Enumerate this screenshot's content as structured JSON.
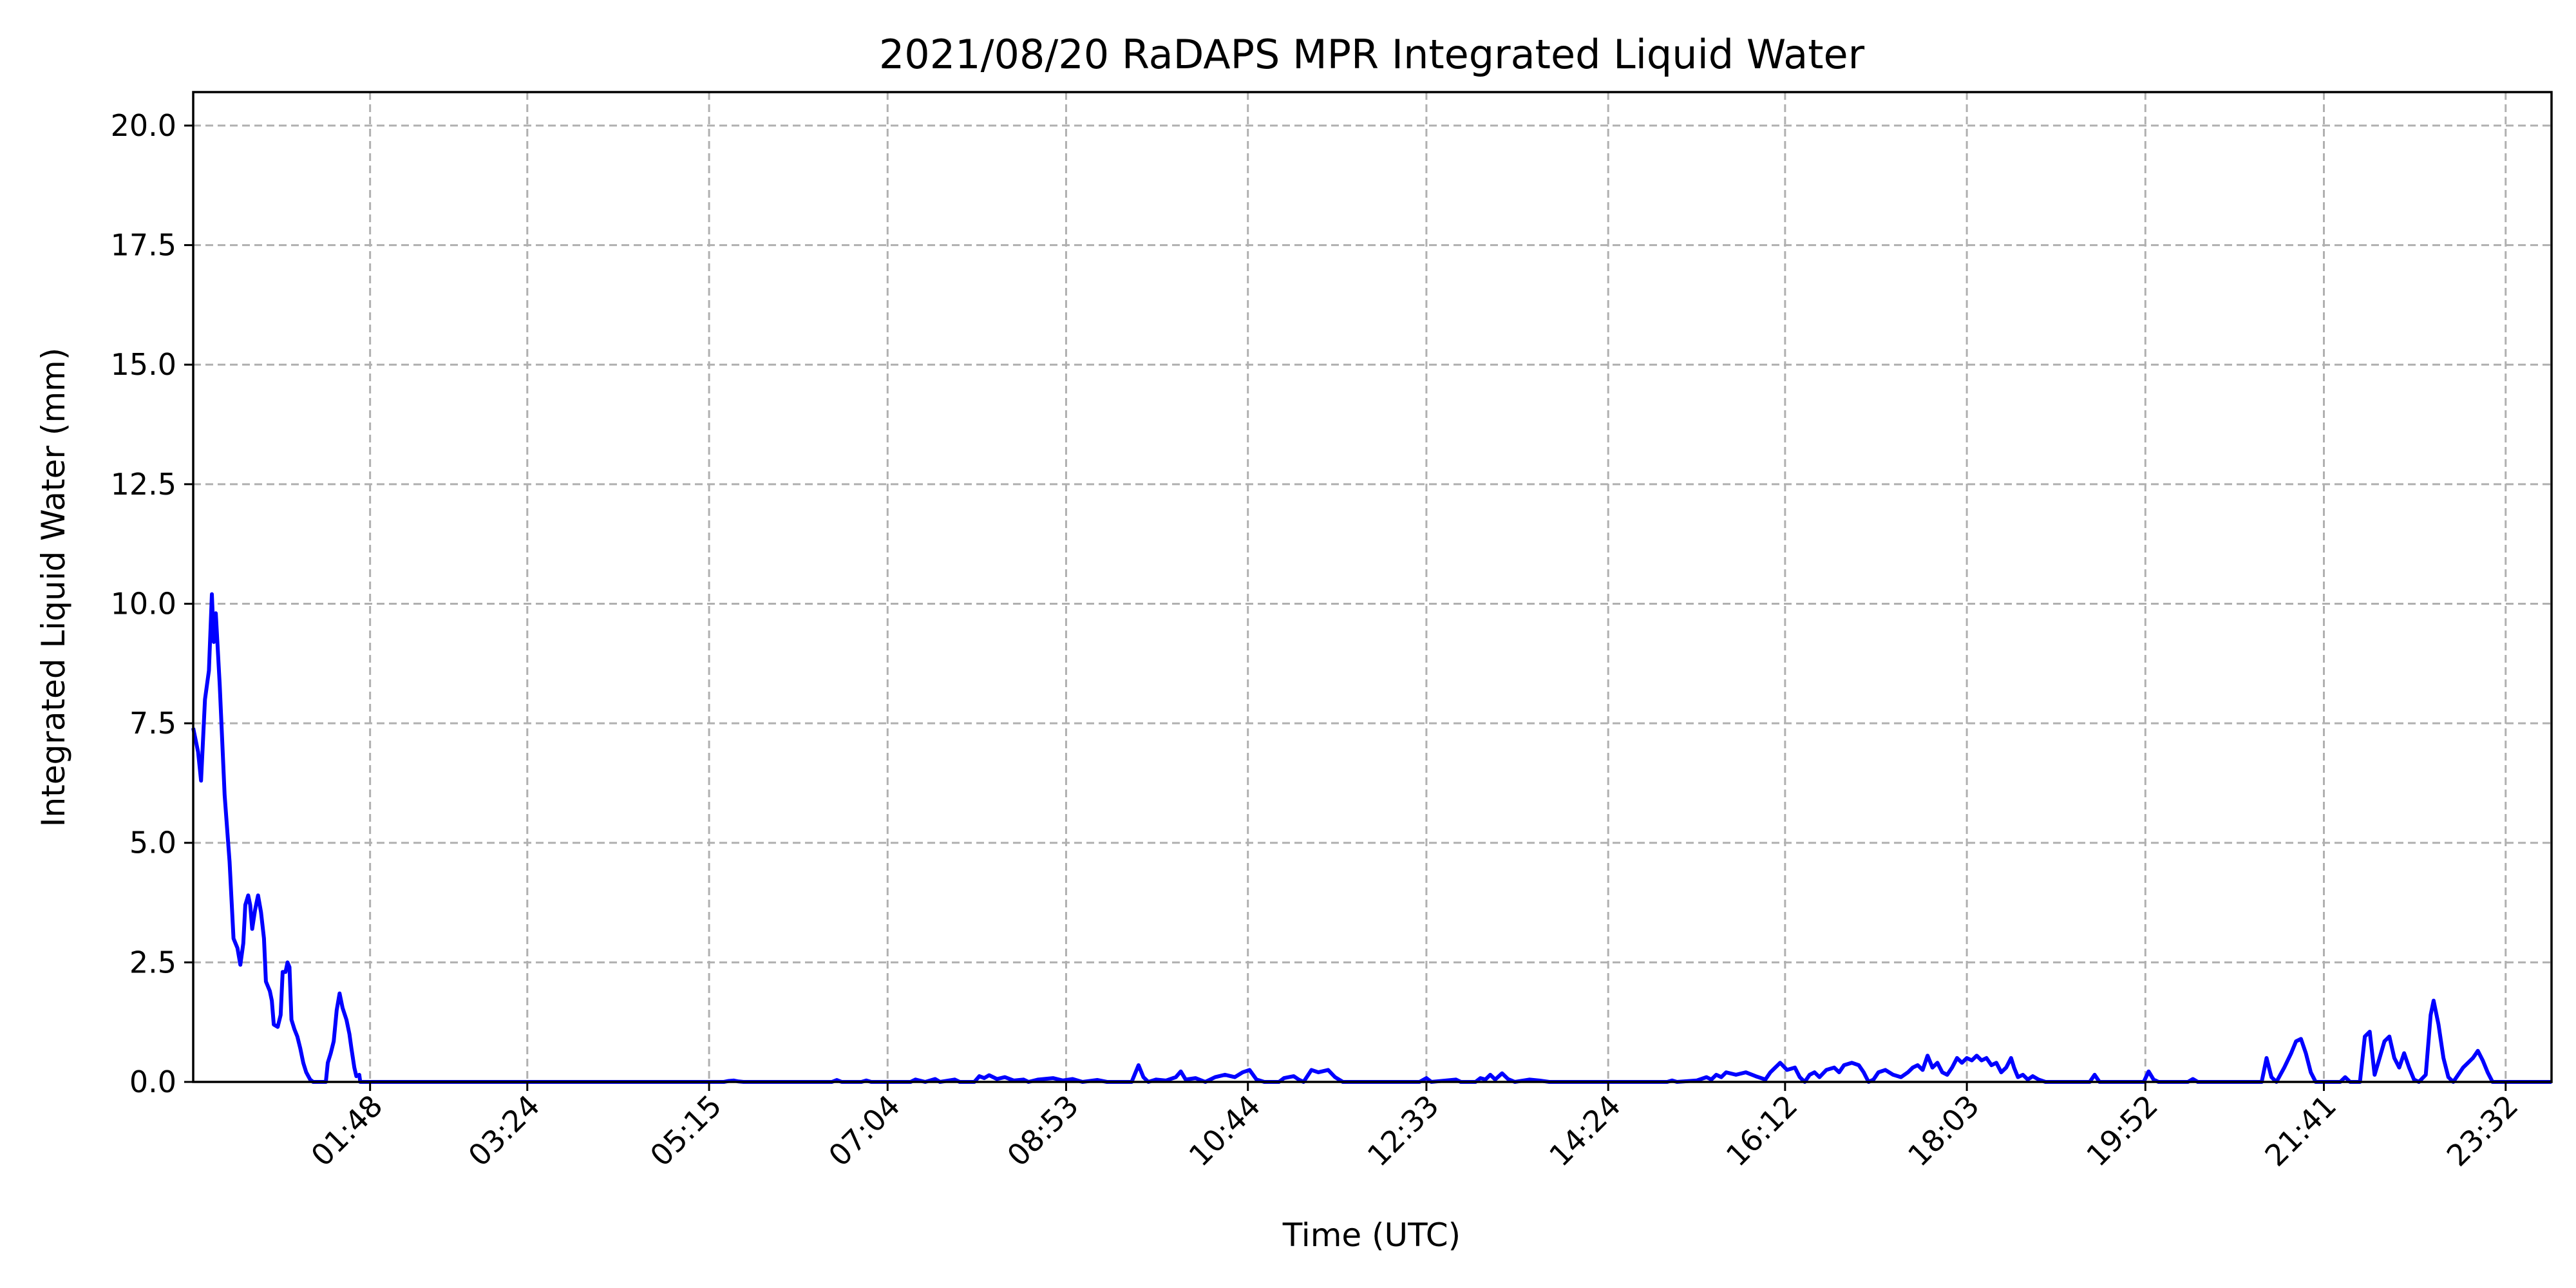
{
  "chart_data": {
    "type": "line",
    "title": "2021/08/20 RaDAPS MPR Integrated Liquid Water",
    "xlabel": "Time (UTC)",
    "ylabel": "Integrated Liquid Water (mm)",
    "xlim_hours": [
      0.0,
      24.0
    ],
    "ylim": [
      0,
      20.7
    ],
    "grid": true,
    "x_ticks": [
      {
        "h": 1.8,
        "label": "01:48"
      },
      {
        "h": 3.4,
        "label": "03:24"
      },
      {
        "h": 5.25,
        "label": "05:15"
      },
      {
        "h": 7.0667,
        "label": "07:04"
      },
      {
        "h": 8.8833,
        "label": "08:53"
      },
      {
        "h": 10.7333,
        "label": "10:44"
      },
      {
        "h": 12.55,
        "label": "12:33"
      },
      {
        "h": 14.4,
        "label": "14:24"
      },
      {
        "h": 16.2,
        "label": "16:12"
      },
      {
        "h": 18.05,
        "label": "18:03"
      },
      {
        "h": 19.8667,
        "label": "19:52"
      },
      {
        "h": 21.6833,
        "label": "21:41"
      },
      {
        "h": 23.5333,
        "label": "23:32"
      }
    ],
    "y_ticks": [
      {
        "v": 0.0,
        "label": "0.0"
      },
      {
        "v": 2.5,
        "label": "2.5"
      },
      {
        "v": 5.0,
        "label": "5.0"
      },
      {
        "v": 7.5,
        "label": "7.5"
      },
      {
        "v": 10.0,
        "label": "10.0"
      },
      {
        "v": 12.5,
        "label": "12.5"
      },
      {
        "v": 15.0,
        "label": "15.0"
      },
      {
        "v": 17.5,
        "label": "17.5"
      },
      {
        "v": 20.0,
        "label": "20.0"
      }
    ],
    "series": [
      {
        "color": "#0000ff",
        "points": [
          [
            0.0,
            7.4
          ],
          [
            0.05,
            6.9
          ],
          [
            0.08,
            6.3
          ],
          [
            0.12,
            8.0
          ],
          [
            0.16,
            8.6
          ],
          [
            0.19,
            10.2
          ],
          [
            0.21,
            9.2
          ],
          [
            0.23,
            9.8
          ],
          [
            0.27,
            8.3
          ],
          [
            0.32,
            6.0
          ],
          [
            0.37,
            4.6
          ],
          [
            0.41,
            3.0
          ],
          [
            0.45,
            2.8
          ],
          [
            0.48,
            2.45
          ],
          [
            0.51,
            2.9
          ],
          [
            0.53,
            3.7
          ],
          [
            0.56,
            3.9
          ],
          [
            0.58,
            3.7
          ],
          [
            0.6,
            3.2
          ],
          [
            0.63,
            3.6
          ],
          [
            0.66,
            3.9
          ],
          [
            0.69,
            3.55
          ],
          [
            0.72,
            3.0
          ],
          [
            0.74,
            2.1
          ],
          [
            0.78,
            1.9
          ],
          [
            0.8,
            1.7
          ],
          [
            0.82,
            1.2
          ],
          [
            0.86,
            1.15
          ],
          [
            0.89,
            1.4
          ],
          [
            0.91,
            2.3
          ],
          [
            0.94,
            2.3
          ],
          [
            0.96,
            2.5
          ],
          [
            0.98,
            2.4
          ],
          [
            1.0,
            1.3
          ],
          [
            1.03,
            1.1
          ],
          [
            1.06,
            0.95
          ],
          [
            1.09,
            0.7
          ],
          [
            1.12,
            0.4
          ],
          [
            1.15,
            0.2
          ],
          [
            1.19,
            0.05
          ],
          [
            1.22,
            0.0
          ],
          [
            1.35,
            0.0
          ],
          [
            1.37,
            0.4
          ],
          [
            1.4,
            0.6
          ],
          [
            1.43,
            0.85
          ],
          [
            1.46,
            1.5
          ],
          [
            1.49,
            1.85
          ],
          [
            1.52,
            1.55
          ],
          [
            1.56,
            1.3
          ],
          [
            1.59,
            1.0
          ],
          [
            1.61,
            0.7
          ],
          [
            1.64,
            0.3
          ],
          [
            1.66,
            0.12
          ],
          [
            1.69,
            0.15
          ],
          [
            1.7,
            0.0
          ],
          [
            5.4,
            0.0
          ],
          [
            5.45,
            0.02
          ],
          [
            5.5,
            0.03
          ],
          [
            5.55,
            0.01
          ],
          [
            5.6,
            0.0
          ],
          [
            6.5,
            0.0
          ],
          [
            6.55,
            0.04
          ],
          [
            6.6,
            0.0
          ],
          [
            6.8,
            0.0
          ],
          [
            6.85,
            0.03
          ],
          [
            6.9,
            0.0
          ],
          [
            7.3,
            0.0
          ],
          [
            7.35,
            0.05
          ],
          [
            7.45,
            0.0
          ],
          [
            7.55,
            0.06
          ],
          [
            7.6,
            0.0
          ],
          [
            7.75,
            0.05
          ],
          [
            7.8,
            0.0
          ],
          [
            7.95,
            0.0
          ],
          [
            8.0,
            0.12
          ],
          [
            8.05,
            0.08
          ],
          [
            8.1,
            0.14
          ],
          [
            8.18,
            0.06
          ],
          [
            8.26,
            0.1
          ],
          [
            8.35,
            0.03
          ],
          [
            8.45,
            0.05
          ],
          [
            8.5,
            0.0
          ],
          [
            8.6,
            0.05
          ],
          [
            8.75,
            0.08
          ],
          [
            8.85,
            0.03
          ],
          [
            8.95,
            0.06
          ],
          [
            9.05,
            0.0
          ],
          [
            9.2,
            0.04
          ],
          [
            9.3,
            0.0
          ],
          [
            9.55,
            0.0
          ],
          [
            9.62,
            0.35
          ],
          [
            9.67,
            0.1
          ],
          [
            9.72,
            0.0
          ],
          [
            9.8,
            0.05
          ],
          [
            9.9,
            0.03
          ],
          [
            10.0,
            0.1
          ],
          [
            10.05,
            0.22
          ],
          [
            10.1,
            0.05
          ],
          [
            10.2,
            0.08
          ],
          [
            10.3,
            0.0
          ],
          [
            10.4,
            0.1
          ],
          [
            10.5,
            0.15
          ],
          [
            10.6,
            0.1
          ],
          [
            10.68,
            0.2
          ],
          [
            10.75,
            0.25
          ],
          [
            10.82,
            0.05
          ],
          [
            10.9,
            0.0
          ],
          [
            11.05,
            0.0
          ],
          [
            11.1,
            0.08
          ],
          [
            11.2,
            0.12
          ],
          [
            11.25,
            0.05
          ],
          [
            11.3,
            0.0
          ],
          [
            11.38,
            0.25
          ],
          [
            11.45,
            0.2
          ],
          [
            11.55,
            0.25
          ],
          [
            11.62,
            0.1
          ],
          [
            11.7,
            0.0
          ],
          [
            12.48,
            0.0
          ],
          [
            12.55,
            0.08
          ],
          [
            12.6,
            0.0
          ],
          [
            12.85,
            0.05
          ],
          [
            12.9,
            0.0
          ],
          [
            13.05,
            0.0
          ],
          [
            13.1,
            0.08
          ],
          [
            13.15,
            0.05
          ],
          [
            13.2,
            0.15
          ],
          [
            13.25,
            0.05
          ],
          [
            13.32,
            0.18
          ],
          [
            13.38,
            0.06
          ],
          [
            13.45,
            0.0
          ],
          [
            13.6,
            0.05
          ],
          [
            13.7,
            0.03
          ],
          [
            13.8,
            0.0
          ],
          [
            15.0,
            0.0
          ],
          [
            15.05,
            0.03
          ],
          [
            15.1,
            0.0
          ],
          [
            15.3,
            0.03
          ],
          [
            15.4,
            0.1
          ],
          [
            15.45,
            0.05
          ],
          [
            15.5,
            0.15
          ],
          [
            15.55,
            0.1
          ],
          [
            15.6,
            0.2
          ],
          [
            15.7,
            0.15
          ],
          [
            15.8,
            0.2
          ],
          [
            15.9,
            0.12
          ],
          [
            16.0,
            0.05
          ],
          [
            16.05,
            0.2
          ],
          [
            16.1,
            0.3
          ],
          [
            16.15,
            0.4
          ],
          [
            16.22,
            0.25
          ],
          [
            16.3,
            0.3
          ],
          [
            16.35,
            0.1
          ],
          [
            16.4,
            0.0
          ],
          [
            16.45,
            0.15
          ],
          [
            16.5,
            0.2
          ],
          [
            16.55,
            0.1
          ],
          [
            16.62,
            0.25
          ],
          [
            16.7,
            0.3
          ],
          [
            16.75,
            0.2
          ],
          [
            16.8,
            0.35
          ],
          [
            16.88,
            0.4
          ],
          [
            16.95,
            0.35
          ],
          [
            17.0,
            0.2
          ],
          [
            17.05,
            0.0
          ],
          [
            17.1,
            0.05
          ],
          [
            17.15,
            0.2
          ],
          [
            17.22,
            0.25
          ],
          [
            17.3,
            0.15
          ],
          [
            17.38,
            0.1
          ],
          [
            17.45,
            0.2
          ],
          [
            17.5,
            0.3
          ],
          [
            17.55,
            0.35
          ],
          [
            17.6,
            0.25
          ],
          [
            17.65,
            0.55
          ],
          [
            17.7,
            0.3
          ],
          [
            17.75,
            0.4
          ],
          [
            17.8,
            0.2
          ],
          [
            17.85,
            0.15
          ],
          [
            17.9,
            0.3
          ],
          [
            17.95,
            0.5
          ],
          [
            18.0,
            0.4
          ],
          [
            18.05,
            0.5
          ],
          [
            18.1,
            0.45
          ],
          [
            18.15,
            0.55
          ],
          [
            18.2,
            0.45
          ],
          [
            18.25,
            0.5
          ],
          [
            18.3,
            0.35
          ],
          [
            18.35,
            0.4
          ],
          [
            18.4,
            0.2
          ],
          [
            18.45,
            0.3
          ],
          [
            18.5,
            0.5
          ],
          [
            18.53,
            0.3
          ],
          [
            18.57,
            0.1
          ],
          [
            18.62,
            0.15
          ],
          [
            18.67,
            0.05
          ],
          [
            18.72,
            0.12
          ],
          [
            18.78,
            0.05
          ],
          [
            18.85,
            0.0
          ],
          [
            19.3,
            0.0
          ],
          [
            19.35,
            0.15
          ],
          [
            19.4,
            0.0
          ],
          [
            19.85,
            0.0
          ],
          [
            19.9,
            0.22
          ],
          [
            19.95,
            0.05
          ],
          [
            20.0,
            0.0
          ],
          [
            20.3,
            0.0
          ],
          [
            20.35,
            0.06
          ],
          [
            20.4,
            0.0
          ],
          [
            21.05,
            0.0
          ],
          [
            21.1,
            0.5
          ],
          [
            21.15,
            0.1
          ],
          [
            21.2,
            0.0
          ],
          [
            21.28,
            0.3
          ],
          [
            21.35,
            0.6
          ],
          [
            21.4,
            0.85
          ],
          [
            21.45,
            0.9
          ],
          [
            21.5,
            0.6
          ],
          [
            21.55,
            0.2
          ],
          [
            21.6,
            0.0
          ],
          [
            21.85,
            0.0
          ],
          [
            21.9,
            0.1
          ],
          [
            21.95,
            0.0
          ],
          [
            22.05,
            0.0
          ],
          [
            22.1,
            0.95
          ],
          [
            22.15,
            1.05
          ],
          [
            22.2,
            0.15
          ],
          [
            22.25,
            0.5
          ],
          [
            22.3,
            0.85
          ],
          [
            22.35,
            0.95
          ],
          [
            22.4,
            0.5
          ],
          [
            22.45,
            0.3
          ],
          [
            22.5,
            0.6
          ],
          [
            22.55,
            0.3
          ],
          [
            22.6,
            0.05
          ],
          [
            22.65,
            0.0
          ],
          [
            22.72,
            0.15
          ],
          [
            22.77,
            1.4
          ],
          [
            22.8,
            1.7
          ],
          [
            22.85,
            1.2
          ],
          [
            22.9,
            0.5
          ],
          [
            22.95,
            0.1
          ],
          [
            23.0,
            0.0
          ],
          [
            23.05,
            0.15
          ],
          [
            23.1,
            0.3
          ],
          [
            23.15,
            0.4
          ],
          [
            23.2,
            0.5
          ],
          [
            23.25,
            0.65
          ],
          [
            23.3,
            0.45
          ],
          [
            23.35,
            0.2
          ],
          [
            23.4,
            0.0
          ],
          [
            24.0,
            0.0
          ]
        ]
      }
    ]
  }
}
